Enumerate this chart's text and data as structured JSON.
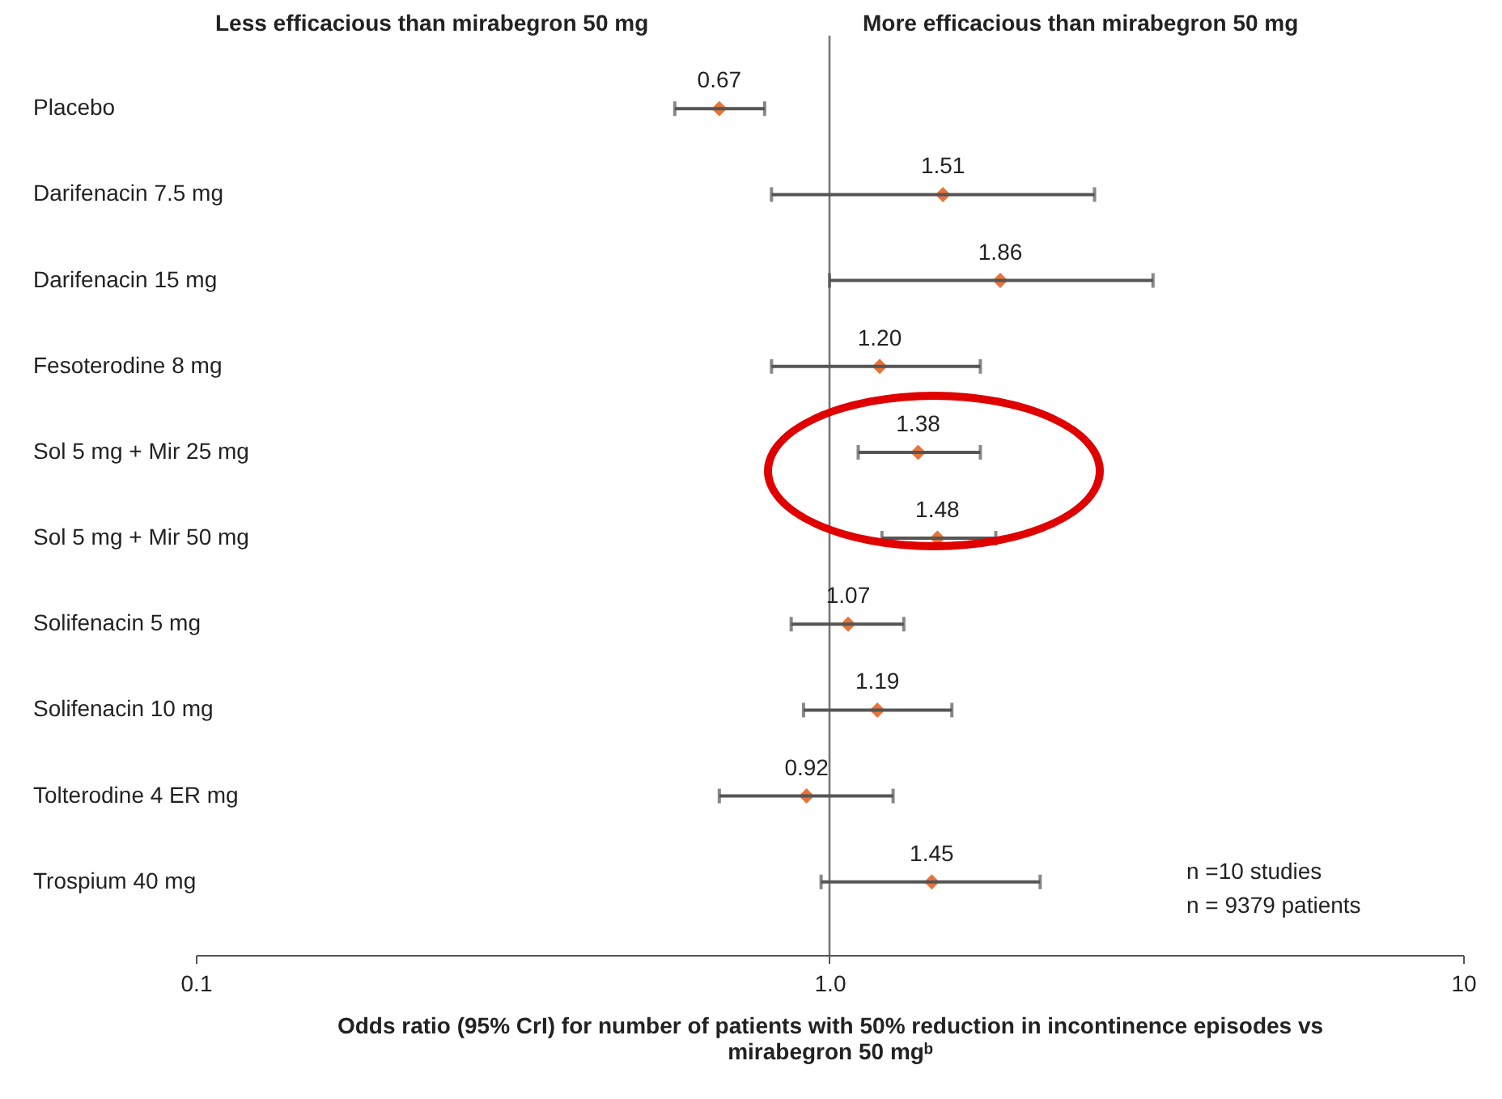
{
  "chart_data": {
    "type": "scatter",
    "orientation": "horizontal",
    "xlabel": "Odds ratio (95% CrI) for number of patients with 50% reduction in incontinence episodes vs mirabegron 50 mgᵇ",
    "categories": [
      "Placebo",
      "Darifenacin 7.5 mg",
      "Darifenacin 15 mg",
      "Fesoterodine 8 mg",
      "Sol 5 mg + Mir 25 mg",
      "Sol 5 mg + Mir 50 mg",
      "Solifenacin 5 mg",
      "Solifenacin 10 mg",
      "Tolterodine 4 ER mg",
      "Trospium 40 mg"
    ],
    "series": [
      {
        "color": "#e8743b",
        "values": [
          0.67,
          1.51,
          1.86,
          1.2,
          1.38,
          1.48,
          1.07,
          1.19,
          0.92,
          1.45
        ],
        "errors": [
          [
            0.57,
            0.79
          ],
          [
            0.81,
            2.62
          ],
          [
            1.0,
            3.24
          ],
          [
            0.81,
            1.73
          ],
          [
            1.11,
            1.73
          ],
          [
            1.21,
            1.83
          ],
          [
            0.87,
            1.31
          ],
          [
            0.91,
            1.56
          ],
          [
            0.67,
            1.26
          ],
          [
            0.97,
            2.15
          ]
        ],
        "value_labels": [
          "0.67",
          "1.51",
          "1.86",
          "1.20",
          "1.38",
          "1.48",
          "1.07",
          "1.19",
          "0.92",
          "1.45"
        ]
      }
    ],
    "marker": "diamond",
    "log": "x",
    "xlim": [
      0.1,
      10
    ],
    "xticks": [
      0.1,
      {
        "value": 1,
        "label": "1.0"
      },
      10
    ],
    "ref_lines": [
      {
        "axis": "x",
        "value": 1
      }
    ],
    "annotations": [
      "Less efficacious than mirabegron 50 mg",
      "More efficacious than mirabegron 50 mg",
      "n =10 studies",
      "n = 9379 patients"
    ]
  }
}
